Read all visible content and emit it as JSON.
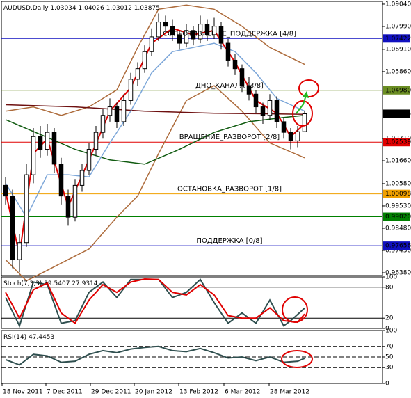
{
  "chart_data": [
    {
      "type": "candlestick",
      "title": "AUDUSD,Daily",
      "open": [
        1.005,
        1.0,
        0.97,
        0.978,
        1.01,
        1.028,
        1.022,
        1.03,
        1.015,
        1.0,
        0.99,
        1.005,
        1.012,
        1.022,
        1.03,
        1.038,
        1.042,
        1.035,
        1.045,
        1.055,
        1.06,
        1.068,
        1.075,
        1.082,
        1.08,
        1.076,
        1.072,
        1.078,
        1.074,
        1.081,
        1.076,
        1.08,
        1.072,
        1.064,
        1.06,
        1.052,
        1.048,
        1.042,
        1.038,
        1.045,
        1.035,
        1.03,
        1.026,
        1.03034
      ],
      "high": [
        1.009,
        1.003,
        0.982,
        1.015,
        1.032,
        1.033,
        1.034,
        1.032,
        1.018,
        1.003,
        1.008,
        1.015,
        1.025,
        1.033,
        1.041,
        1.046,
        1.044,
        1.048,
        1.058,
        1.063,
        1.071,
        1.079,
        1.086,
        1.085,
        1.083,
        1.078,
        1.081,
        1.08,
        1.085,
        1.083,
        1.084,
        1.082,
        1.074,
        1.067,
        1.062,
        1.056,
        1.05,
        1.044,
        1.048,
        1.047,
        1.037,
        1.032,
        1.033,
        1.04026
      ],
      "low": [
        0.996,
        0.966,
        0.964,
        0.976,
        1.006,
        1.018,
        1.019,
        1.011,
        0.996,
        0.986,
        0.988,
        1.002,
        1.01,
        1.019,
        1.027,
        1.035,
        1.032,
        1.033,
        1.043,
        1.052,
        1.058,
        1.066,
        1.073,
        1.077,
        1.073,
        1.069,
        1.07,
        1.071,
        1.072,
        1.073,
        1.074,
        1.069,
        1.061,
        1.057,
        1.049,
        1.045,
        1.039,
        1.034,
        1.036,
        1.032,
        1.027,
        1.022,
        1.023,
        1.03012
      ],
      "close": [
        1.0,
        0.97,
        0.978,
        1.01,
        1.028,
        1.022,
        1.03,
        1.015,
        1.0,
        0.99,
        1.005,
        1.012,
        1.022,
        1.03,
        1.038,
        1.042,
        1.035,
        1.045,
        1.055,
        1.06,
        1.068,
        1.075,
        1.082,
        1.08,
        1.076,
        1.072,
        1.078,
        1.074,
        1.081,
        1.076,
        1.08,
        1.072,
        1.064,
        1.06,
        1.052,
        1.048,
        1.042,
        1.038,
        1.045,
        1.035,
        1.03,
        1.026,
        1.0303,
        1.03875
      ],
      "indicators": [
        {
          "color": "#ad6b3b",
          "x": [
            0,
            4,
            8,
            12,
            16,
            19,
            22,
            26,
            30,
            34,
            38,
            43
          ],
          "values": [
            1.04,
            1.042,
            1.038,
            1.042,
            1.05,
            1.07,
            1.088,
            1.09,
            1.088,
            1.08,
            1.07,
            1.062
          ]
        },
        {
          "color": "#ad6b3b",
          "x": [
            0,
            3,
            6,
            9,
            12,
            16,
            19,
            22,
            26,
            30,
            34,
            38,
            43
          ],
          "values": [
            0.97,
            0.96,
            0.965,
            0.97,
            0.975,
            0.99,
            1.0,
            1.02,
            1.045,
            1.052,
            1.04,
            1.025,
            1.018
          ]
        },
        {
          "color": "#6e1010",
          "x": [
            0,
            10,
            20,
            30,
            43
          ],
          "values": [
            1.043,
            1.042,
            1.04,
            1.039,
            1.0385
          ]
        },
        {
          "color": "#0f5a0f",
          "x": [
            0,
            5,
            10,
            15,
            20,
            25,
            30,
            35,
            40,
            43
          ],
          "values": [
            1.036,
            1.029,
            1.022,
            1.017,
            1.015,
            1.022,
            1.03,
            1.035,
            1.037,
            1.038
          ]
        },
        {
          "color": "#7da7d9",
          "x": [
            0,
            3,
            6,
            9,
            12,
            15,
            18,
            21,
            24,
            27,
            30,
            33,
            36,
            39,
            43
          ],
          "values": [
            1.006,
            0.99,
            1.01,
            1.01,
            1.009,
            1.025,
            1.04,
            1.058,
            1.068,
            1.07,
            1.072,
            1.068,
            1.058,
            1.046,
            1.04
          ]
        },
        {
          "color": "#e00000",
          "x": [
            0,
            2,
            4,
            6,
            9,
            12,
            15,
            18,
            21,
            24,
            27,
            30,
            33,
            36,
            39,
            41,
            43
          ],
          "values": [
            1.002,
            0.972,
            1.02,
            1.027,
            0.995,
            1.017,
            1.04,
            1.051,
            1.072,
            1.079,
            1.076,
            1.078,
            1.063,
            1.045,
            1.039,
            1.028,
            1.034
          ]
        }
      ],
      "levels": [
        {
          "label": "СОПРОТИВЛЕНИЕ_ПОДДЕРЖКА [4/8]",
          "value": 1.07422,
          "color": "#1010c0"
        },
        {
          "label": "ДНО_КАНАЛА [3/8]",
          "value": 1.0498,
          "value_label": "1.04980",
          "color": "#6b8e23"
        },
        {
          "label": "ВРАЩЕНИЕ_РАЗВОРОТ [2/8]",
          "value": 1.02539,
          "color": "#e00000"
        },
        {
          "label": "ОСТАНОВКА_РАЗВОРОТ [1/8]",
          "value": 1.00098,
          "color": "#f0a000"
        },
        {
          "value": 0.9902,
          "value_label": "0.99020",
          "color": "#008000"
        },
        {
          "label": "ПОДДЕРЖКА [0/8]",
          "value": 0.97656,
          "color": "#1010c0"
        }
      ],
      "ylim": [
        0.9625,
        1.0917
      ],
      "yticks": [
        {
          "value": 1.0904,
          "label": "1.09040"
        },
        {
          "value": 1.0799,
          "label": "1.07990"
        },
        {
          "value": 1.0691,
          "label": "1.06910"
        },
        {
          "value": 1.0586,
          "label": "1.05860"
        },
        {
          "value": 1.0271,
          "label": "1.02710"
        },
        {
          "value": 1.0166,
          "label": "1.01660"
        },
        {
          "value": 1.0058,
          "label": "1.00580"
        },
        {
          "value": 0.9953,
          "label": "0.99530"
        },
        {
          "value": 0.9848,
          "label": "0.98480"
        },
        {
          "value": 0.9743,
          "label": "0.97430"
        },
        {
          "value": 0.9638,
          "label": "0.96380"
        }
      ],
      "xlim": [
        -0.6,
        54.2
      ],
      "xticks": [
        {
          "value": -0.5,
          "label": "18 Nov 2011"
        },
        {
          "value": 5.8,
          "label": "7 Dec 2011"
        },
        {
          "value": 12.2,
          "label": "29 Dec 2011"
        },
        {
          "value": 18.5,
          "label": "20 Jan 2012"
        },
        {
          "value": 24.9,
          "label": "13 Feb 2012"
        },
        {
          "value": 31.4,
          "label": "6 Mar 2012"
        },
        {
          "value": 37.9,
          "label": "28 Mar 2012"
        }
      ]
    },
    {
      "type": "line",
      "title": "Stoch(7,3,3)",
      "series": [
        {
          "color": "#2f4f4f",
          "x": [
            0,
            2,
            4,
            6,
            8,
            10,
            12,
            14,
            16,
            18,
            20,
            22,
            24,
            26,
            28,
            30,
            32,
            34,
            36,
            38,
            40,
            41,
            43
          ],
          "values": [
            60,
            5,
            90,
            85,
            10,
            15,
            70,
            90,
            60,
            95,
            95,
            95,
            60,
            70,
            95,
            50,
            10,
            30,
            10,
            55,
            5,
            15,
            39.5407
          ]
        },
        {
          "color": "#e00000",
          "x": [
            0,
            2,
            4,
            6,
            8,
            10,
            12,
            14,
            16,
            18,
            20,
            22,
            24,
            26,
            28,
            30,
            32,
            34,
            36,
            38,
            40,
            42,
            43
          ],
          "values": [
            70,
            20,
            75,
            88,
            30,
            10,
            55,
            85,
            70,
            90,
            96,
            95,
            70,
            65,
            85,
            65,
            25,
            20,
            20,
            40,
            15,
            12,
            27.9314
          ]
        }
      ],
      "ylim": [
        0,
        100
      ],
      "yticks": [
        100,
        80,
        20,
        0
      ],
      "levels": [
        80,
        20
      ],
      "xlim": [
        -0.6,
        54.2
      ]
    },
    {
      "type": "line",
      "title": "RSI(14)",
      "series": [
        {
          "color": "#2f4f4f",
          "x": [
            0,
            2,
            4,
            6,
            8,
            10,
            12,
            14,
            16,
            18,
            20,
            22,
            24,
            26,
            28,
            30,
            32,
            34,
            36,
            38,
            40,
            42,
            43
          ],
          "values": [
            45,
            35,
            55,
            52,
            40,
            42,
            55,
            62,
            58,
            65,
            68,
            70,
            62,
            60,
            66,
            58,
            48,
            50,
            43,
            50,
            40,
            42,
            47.4453
          ]
        }
      ],
      "ylim": [
        0,
        100
      ],
      "yticks": [
        100,
        70,
        50,
        30,
        0
      ],
      "levels": [
        70,
        50,
        30
      ],
      "xlim": [
        -0.6,
        54.2
      ]
    }
  ]
}
